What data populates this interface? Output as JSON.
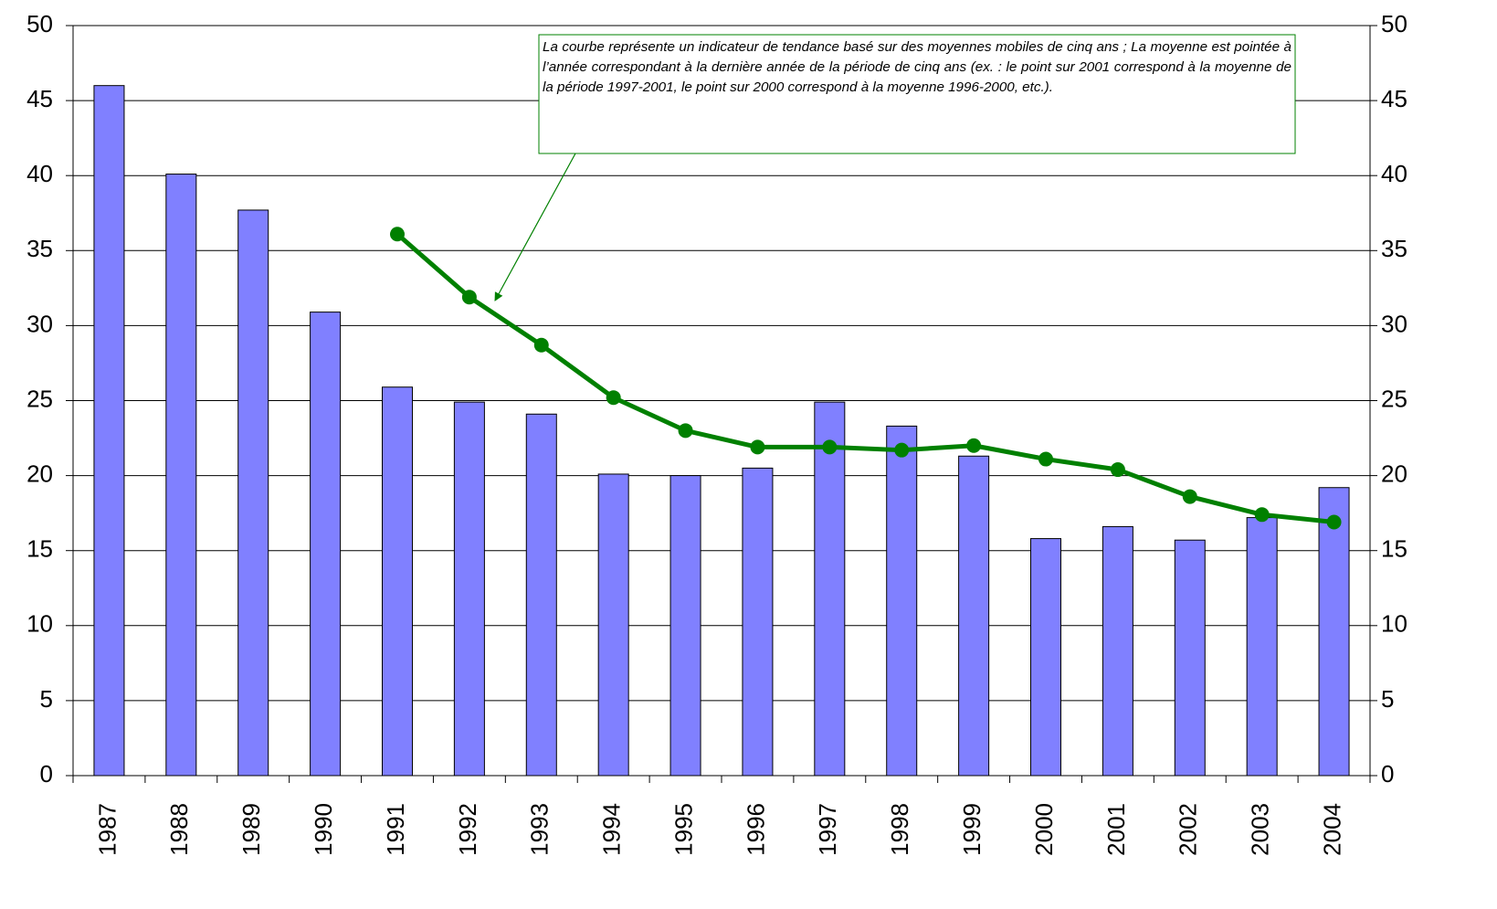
{
  "chart_data": {
    "type": "bar_line",
    "annotation": "La courbe représente un indicateur de tendance basé sur des moyennes mobiles de cinq ans ; La moyenne est pointée à l’année correspondant à la dernière année de la période de cinq ans (ex. : le point sur 2001 correspond à la moyenne de la période 1997-2001, le point sur 2000 correspond à la moyenne 1996-2000, etc.).",
    "categories": [
      "1987",
      "1988",
      "1989",
      "1990",
      "1991",
      "1992",
      "1993",
      "1994",
      "1995",
      "1996",
      "1997",
      "1998",
      "1999",
      "2000",
      "2001",
      "2002",
      "2003",
      "2004"
    ],
    "series": [
      {
        "type": "bar",
        "color": "#8080ff",
        "values": [
          46.0,
          40.1,
          37.7,
          30.9,
          25.9,
          24.9,
          24.1,
          20.1,
          20.0,
          20.5,
          24.9,
          23.3,
          21.3,
          15.8,
          16.6,
          15.7,
          17.2,
          19.2
        ]
      },
      {
        "type": "line",
        "color": "#008000",
        "axis": "y2",
        "values": [
          null,
          null,
          null,
          null,
          36.1,
          31.9,
          28.7,
          25.2,
          23.0,
          21.9,
          21.9,
          21.7,
          22.0,
          21.1,
          20.4,
          18.6,
          17.4,
          16.9
        ]
      }
    ],
    "ylim": [
      0,
      50
    ],
    "yticks": [
      0,
      5,
      10,
      15,
      20,
      25,
      30,
      35,
      40,
      45,
      50
    ],
    "y2lim": [
      0,
      50
    ],
    "y2ticks": [
      0,
      5,
      10,
      15,
      20,
      25,
      30,
      35,
      40,
      45,
      50
    ],
    "grid": true
  }
}
